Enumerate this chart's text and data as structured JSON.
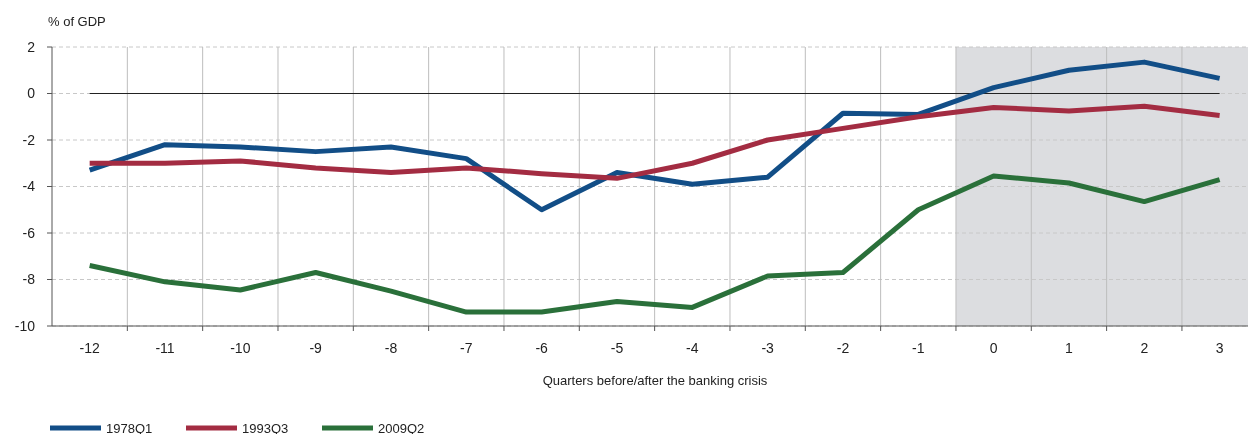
{
  "chart_data": {
    "type": "line",
    "ylabel": "% of GDP",
    "xlabel": "Quarters before/after the banking crisis",
    "categories": [
      "-12",
      "-11",
      "-10",
      "-9",
      "-8",
      "-7",
      "-6",
      "-5",
      "-4",
      "-3",
      "-2",
      "-1",
      "0",
      "1",
      "2",
      "3"
    ],
    "series": [
      {
        "name": "1978Q1",
        "color": "#124e87",
        "values": [
          -3.3,
          -2.2,
          -2.3,
          -2.5,
          -2.3,
          -2.8,
          -5.0,
          -3.4,
          -3.9,
          -3.6,
          -0.85,
          -0.9,
          0.25,
          1.0,
          1.35,
          0.65
        ]
      },
      {
        "name": "1993Q3",
        "color": "#a32c42",
        "values": [
          -3.0,
          -3.0,
          -2.9,
          -3.2,
          -3.4,
          -3.2,
          -3.45,
          -3.65,
          -3.0,
          -2.0,
          -1.5,
          -1.0,
          -0.6,
          -0.75,
          -0.55,
          -0.95
        ]
      },
      {
        "name": "2009Q2",
        "color": "#2a703a",
        "values": [
          -7.4,
          -8.1,
          -8.45,
          -7.7,
          -8.5,
          -9.4,
          -9.4,
          -8.95,
          -9.2,
          -7.85,
          -7.7,
          -5.0,
          -3.55,
          -3.85,
          -4.65,
          -3.7
        ]
      }
    ],
    "ylim": [
      -10,
      2
    ],
    "yticks": [
      -10,
      -8,
      -6,
      -4,
      -2,
      0,
      2
    ],
    "grid": true,
    "legend": "bottom left",
    "line_style": "solid",
    "marker": "none",
    "ref_lines": [
      {
        "axis": "y",
        "value": 0,
        "color": "#222222"
      }
    ],
    "bands": [
      {
        "axis": "x",
        "from": "0",
        "to": "3",
        "color": "#dcdde0"
      }
    ]
  }
}
